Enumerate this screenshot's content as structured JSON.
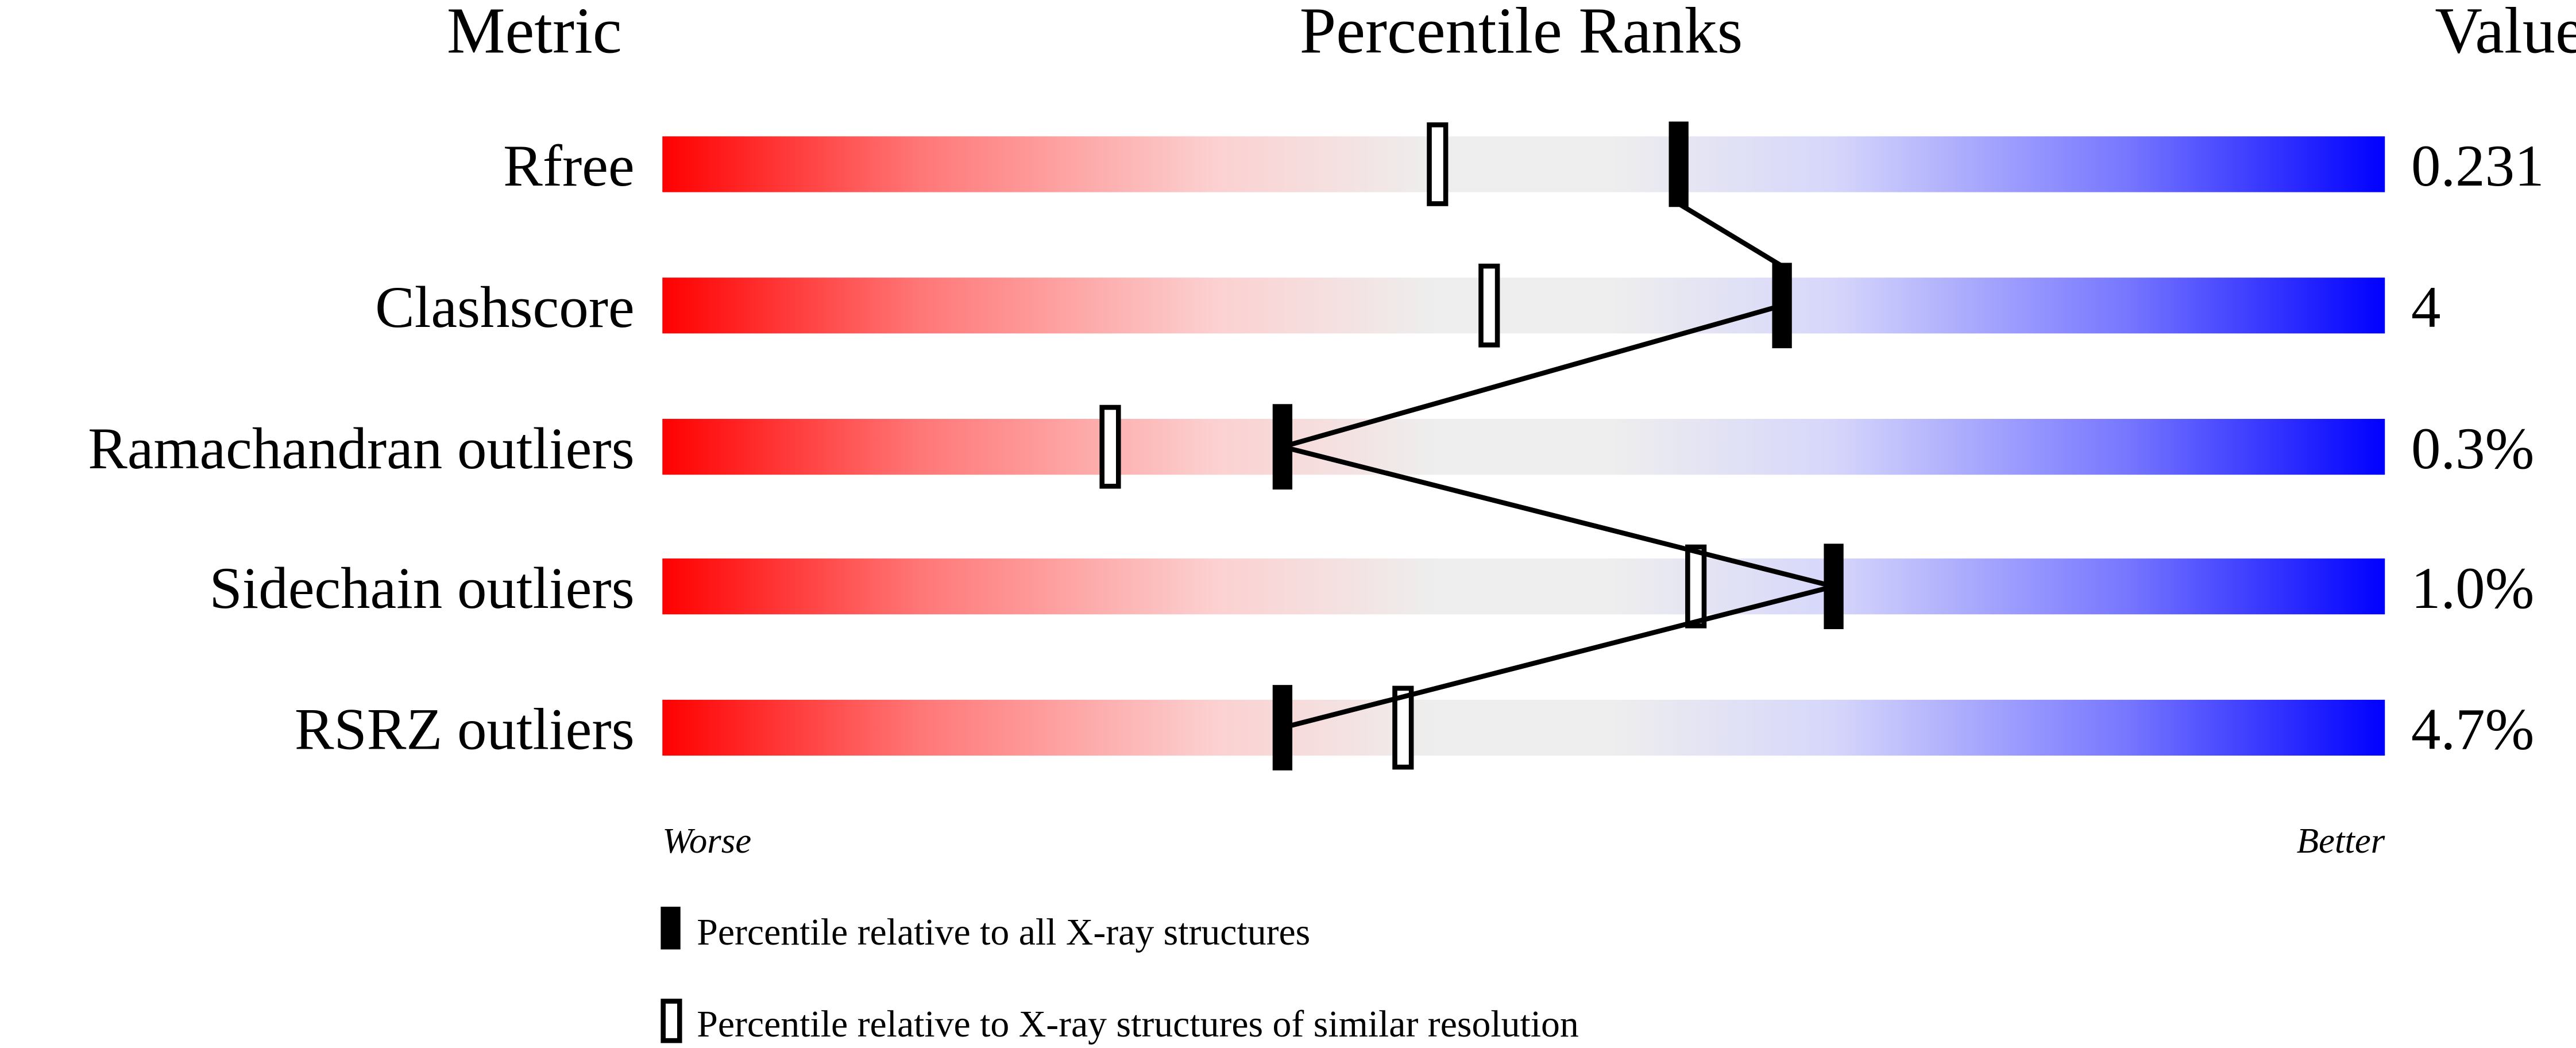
{
  "chart_data": {
    "type": "scatter",
    "header": {
      "metric": "Metric",
      "title": "Percentile Ranks",
      "value": "Value"
    },
    "xlim": [
      0,
      100
    ],
    "axis_labels": {
      "left": "Worse",
      "right": "Better"
    },
    "gradient_colors": {
      "worse": "#ff0000",
      "middle": "#eeeeee",
      "better": "#0000ff"
    },
    "metrics": [
      {
        "name": "Rfree",
        "value": "0.231",
        "percentile_all": 59,
        "percentile_similar": 45
      },
      {
        "name": "Clashscore",
        "value": "4",
        "percentile_all": 65,
        "percentile_similar": 48
      },
      {
        "name": "Ramachandran outliers",
        "value": "0.3%",
        "percentile_all": 36,
        "percentile_similar": 26
      },
      {
        "name": "Sidechain outliers",
        "value": "1.0%",
        "percentile_all": 68,
        "percentile_similar": 60
      },
      {
        "name": "RSRZ outliers",
        "value": "4.7%",
        "percentile_all": 36,
        "percentile_similar": 43
      }
    ],
    "legend": [
      {
        "marker": "filled",
        "label": "Percentile relative to all X-ray structures"
      },
      {
        "marker": "open",
        "label": "Percentile relative to X-ray structures of similar resolution"
      }
    ]
  }
}
